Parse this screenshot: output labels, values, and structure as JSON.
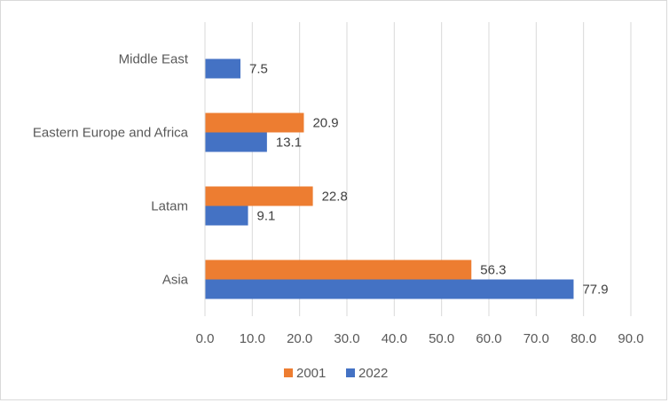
{
  "chart_data": {
    "type": "bar",
    "orientation": "horizontal",
    "categories": [
      "Asia",
      "Latam",
      "Eastern Europe and Africa",
      "Middle East"
    ],
    "series": [
      {
        "name": "2001",
        "color": "#ed7d31",
        "values": [
          56.3,
          22.8,
          20.9,
          null
        ],
        "labels": [
          "56.3",
          "22.8",
          "20.9",
          ""
        ]
      },
      {
        "name": "2022",
        "color": "#4472c4",
        "values": [
          77.9,
          9.1,
          13.1,
          7.5
        ],
        "labels": [
          "77.9",
          "9.1",
          "13.1",
          "7.5"
        ]
      }
    ],
    "xlim": [
      0,
      90
    ],
    "xticks": [
      0,
      10,
      20,
      30,
      40,
      50,
      60,
      70,
      80,
      90
    ],
    "xtick_labels": [
      "0.0",
      "10.0",
      "20.0",
      "30.0",
      "40.0",
      "50.0",
      "60.0",
      "70.0",
      "80.0",
      "90.0"
    ],
    "gridlines": "vertical",
    "legend_position": "bottom"
  }
}
